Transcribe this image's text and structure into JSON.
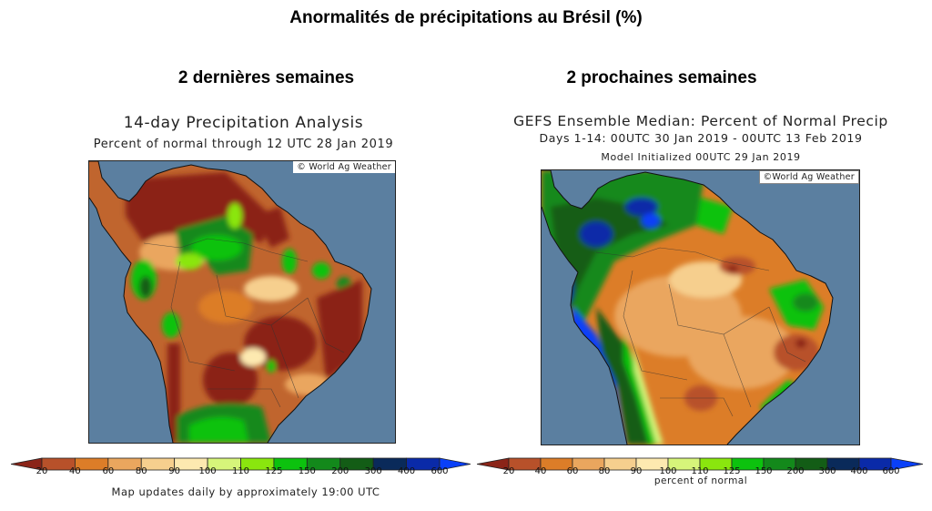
{
  "header": {
    "title": "Anormalités de précipitations au Brésil (%)"
  },
  "panels": [
    {
      "heading": "2 dernières semaines",
      "map_title": "14-day Precipitation Analysis",
      "map_subtitle": "Percent of normal through 12 UTC 28 Jan 2019",
      "map_subtitle2": "",
      "credit": "© World Ag Weather",
      "colorbar_caption": "Map updates daily by approximately 19:00 UTC"
    },
    {
      "heading": "2 prochaines semaines",
      "map_title": "GEFS Ensemble Median: Percent of Normal Precip",
      "map_subtitle": "Days 1-14: 00UTC 30 Jan 2019 - 00UTC 13 Feb 2019",
      "map_subtitle2": "Model Initialized 00UTC 29 Jan 2019",
      "credit": "©World Ag Weather",
      "colorbar_caption": "percent of normal"
    }
  ],
  "legend": {
    "unit": "percent of normal",
    "ticks": [
      "20",
      "40",
      "60",
      "80",
      "90",
      "100",
      "110",
      "125",
      "150",
      "200",
      "300",
      "400",
      "600"
    ],
    "colors": [
      "#8b2418",
      "#b8512a",
      "#dc7d28",
      "#eaa65e",
      "#f6cf8e",
      "#fde9b0",
      "#d6f57a",
      "#8ae60e",
      "#0cc20e",
      "#13891b",
      "#135d16",
      "#0a2a5a",
      "#0a2aa8",
      "#0a40f8"
    ]
  },
  "colors": {
    "ocean": "#5b7fa0",
    "dry_extreme": "#8b2418",
    "wet_extreme": "#0a40f8"
  }
}
